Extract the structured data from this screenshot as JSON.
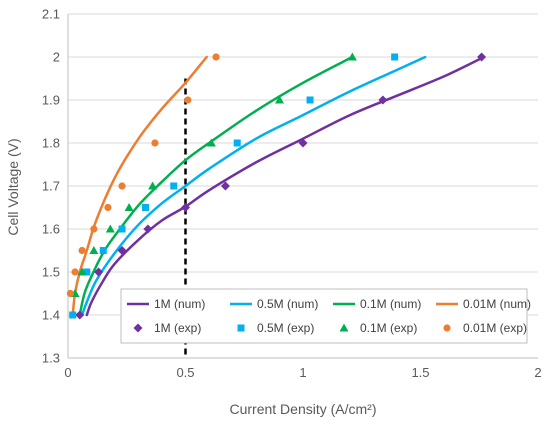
{
  "chart_data": {
    "type": "scatter",
    "title": "",
    "xlabel": "Current Density (A/cm²)",
    "ylabel": "Cell Voltage (V)",
    "xlim": [
      0,
      2
    ],
    "ylim": [
      1.3,
      2.1
    ],
    "x_ticks": [
      "0",
      "0.5",
      "1",
      "1.5",
      "2"
    ],
    "y_ticks": [
      "1.3",
      "1.4",
      "1.5",
      "1.6",
      "1.7",
      "1.8",
      "1.9",
      "2",
      "2.1"
    ],
    "grid": "horizontal",
    "legend_position": "bottom-right inside",
    "reference_line": {
      "x": 0.5,
      "style": "dashed",
      "color": "#000000"
    },
    "series": [
      {
        "name": "1M (num)",
        "kind": "line",
        "color": "#7030A0",
        "points": [
          [
            0.08,
            1.4
          ],
          [
            0.1,
            1.43
          ],
          [
            0.15,
            1.48
          ],
          [
            0.2,
            1.52
          ],
          [
            0.3,
            1.575
          ],
          [
            0.4,
            1.62
          ],
          [
            0.5,
            1.652
          ],
          [
            0.6,
            1.69
          ],
          [
            0.8,
            1.755
          ],
          [
            1.0,
            1.81
          ],
          [
            1.2,
            1.865
          ],
          [
            1.4,
            1.91
          ],
          [
            1.6,
            1.955
          ],
          [
            1.77,
            2.0
          ]
        ]
      },
      {
        "name": "0.5M (num)",
        "kind": "line",
        "color": "#00B0F0",
        "points": [
          [
            0.06,
            1.4
          ],
          [
            0.08,
            1.43
          ],
          [
            0.12,
            1.48
          ],
          [
            0.2,
            1.545
          ],
          [
            0.3,
            1.61
          ],
          [
            0.4,
            1.66
          ],
          [
            0.5,
            1.7
          ],
          [
            0.6,
            1.74
          ],
          [
            0.8,
            1.81
          ],
          [
            1.0,
            1.865
          ],
          [
            1.2,
            1.92
          ],
          [
            1.4,
            1.97
          ],
          [
            1.52,
            2.0
          ]
        ]
      },
      {
        "name": "0.1M (num)",
        "kind": "line",
        "color": "#00B050",
        "points": [
          [
            0.05,
            1.4
          ],
          [
            0.07,
            1.45
          ],
          [
            0.1,
            1.49
          ],
          [
            0.15,
            1.545
          ],
          [
            0.2,
            1.585
          ],
          [
            0.3,
            1.655
          ],
          [
            0.4,
            1.71
          ],
          [
            0.5,
            1.76
          ],
          [
            0.6,
            1.8
          ],
          [
            0.8,
            1.875
          ],
          [
            1.0,
            1.94
          ],
          [
            1.21,
            2.0
          ]
        ]
      },
      {
        "name": "0.01M (num)",
        "kind": "line",
        "color": "#ED7D31",
        "points": [
          [
            0.02,
            1.4
          ],
          [
            0.03,
            1.45
          ],
          [
            0.05,
            1.5
          ],
          [
            0.08,
            1.55
          ],
          [
            0.12,
            1.62
          ],
          [
            0.2,
            1.72
          ],
          [
            0.3,
            1.81
          ],
          [
            0.4,
            1.88
          ],
          [
            0.5,
            1.94
          ],
          [
            0.59,
            2.0
          ]
        ]
      },
      {
        "name": "1M (exp)",
        "kind": "marker",
        "marker": "diamond",
        "color": "#7030A0",
        "points": [
          [
            0.05,
            1.4
          ],
          [
            0.13,
            1.5
          ],
          [
            0.23,
            1.55
          ],
          [
            0.34,
            1.6
          ],
          [
            0.5,
            1.65
          ],
          [
            0.67,
            1.7
          ],
          [
            1.0,
            1.8
          ],
          [
            1.34,
            1.9
          ],
          [
            1.76,
            2.0
          ]
        ]
      },
      {
        "name": "0.5M (exp)",
        "kind": "marker",
        "marker": "square",
        "color": "#00B0F0",
        "points": [
          [
            0.02,
            1.4
          ],
          [
            0.08,
            1.5
          ],
          [
            0.15,
            1.55
          ],
          [
            0.23,
            1.6
          ],
          [
            0.33,
            1.65
          ],
          [
            0.45,
            1.7
          ],
          [
            0.72,
            1.8
          ],
          [
            1.03,
            1.9
          ],
          [
            1.39,
            2.0
          ]
        ]
      },
      {
        "name": "0.1M (exp)",
        "kind": "marker",
        "marker": "triangle",
        "color": "#00B050",
        "points": [
          [
            0.03,
            1.45
          ],
          [
            0.06,
            1.5
          ],
          [
            0.11,
            1.55
          ],
          [
            0.18,
            1.6
          ],
          [
            0.26,
            1.65
          ],
          [
            0.36,
            1.7
          ],
          [
            0.61,
            1.8
          ],
          [
            0.9,
            1.9
          ],
          [
            1.21,
            2.0
          ]
        ]
      },
      {
        "name": "0.01M (exp)",
        "kind": "marker",
        "marker": "circle",
        "color": "#ED7D31",
        "points": [
          [
            0.01,
            1.45
          ],
          [
            0.03,
            1.5
          ],
          [
            0.06,
            1.55
          ],
          [
            0.11,
            1.6
          ],
          [
            0.17,
            1.65
          ],
          [
            0.23,
            1.7
          ],
          [
            0.37,
            1.8
          ],
          [
            0.51,
            1.9
          ],
          [
            0.63,
            2.0
          ]
        ]
      }
    ]
  }
}
